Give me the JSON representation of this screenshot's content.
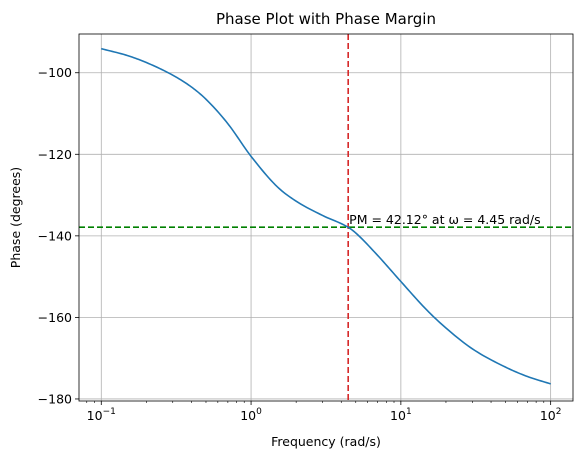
{
  "chart_data": {
    "type": "line",
    "title": "Phase Plot with Phase Margin",
    "xlabel": "Frequency (rad/s)",
    "ylabel": "Phase (degrees)",
    "xscale": "log",
    "xlim": [
      0.071,
      141
    ],
    "ylim": [
      -180.5,
      -90.5
    ],
    "grid": true,
    "x_ticks": [
      {
        "value": 0.1,
        "base": "10",
        "exp": "−1"
      },
      {
        "value": 1,
        "base": "10",
        "exp": "0"
      },
      {
        "value": 10,
        "base": "10",
        "exp": "1"
      },
      {
        "value": 100,
        "base": "10",
        "exp": "2"
      }
    ],
    "y_ticks": [
      {
        "value": -100,
        "label": "−100"
      },
      {
        "value": -120,
        "label": "−120"
      },
      {
        "value": -140,
        "label": "−140"
      },
      {
        "value": -160,
        "label": "−160"
      },
      {
        "value": -180,
        "label": "−180"
      }
    ],
    "series": [
      {
        "color": "#1f77b4",
        "x": [
          0.1,
          0.15,
          0.2,
          0.3,
          0.4,
          0.5,
          0.7,
          1,
          1.5,
          2,
          3,
          4.45,
          5,
          7,
          10,
          15,
          20,
          30,
          50,
          70,
          100
        ],
        "y": [
          -94.1,
          -95.8,
          -97.5,
          -100.6,
          -103.5,
          -106.5,
          -112.5,
          -120.5,
          -128.0,
          -131.5,
          -135.0,
          -137.9,
          -139.3,
          -144.8,
          -151.2,
          -158.3,
          -162.6,
          -167.7,
          -172.2,
          -174.5,
          -176.3
        ]
      }
    ],
    "reference_lines": [
      {
        "orientation": "vertical",
        "value": 4.45,
        "color": "#d62728",
        "style": "dashed"
      },
      {
        "orientation": "horizontal",
        "value": -137.88,
        "color": "#008000",
        "style": "dashed"
      }
    ],
    "annotation": {
      "text": "PM = 42.12° at ω = 4.45 rad/s",
      "x": 4.45,
      "y": -137.88
    }
  }
}
